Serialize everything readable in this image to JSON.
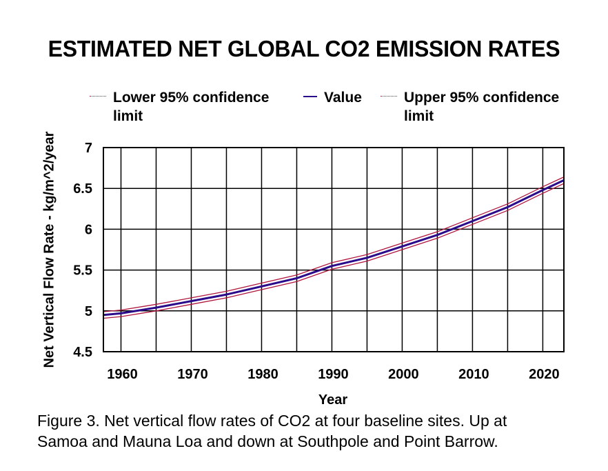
{
  "chart_data": {
    "type": "line",
    "title": "ESTIMATED NET GLOBAL CO2 EMISSION RATES",
    "xlabel": "Year",
    "ylabel": "Net Vertical Flow Rate - kg/m^2/year",
    "xlim": [
      1957.5,
      2023
    ],
    "ylim": [
      4.5,
      7
    ],
    "x_ticks": [
      1960,
      1970,
      1980,
      1990,
      2000,
      2010,
      2020
    ],
    "x_tick_labels": [
      "1960",
      "1970",
      "1980",
      "1990",
      "2000",
      "2010",
      "2020"
    ],
    "x_grid_step": 5,
    "y_ticks": [
      4.5,
      5,
      5.5,
      6,
      6.5,
      7
    ],
    "y_tick_labels": [
      "4.5",
      "5",
      "5.5",
      "6",
      "6.5",
      "7"
    ],
    "grid": true,
    "legend_position": "top",
    "x": [
      1957.5,
      1960,
      1965,
      1970,
      1975,
      1980,
      1985,
      1990,
      1995,
      2000,
      2005,
      2010,
      2015,
      2020,
      2023
    ],
    "series": [
      {
        "name": "Lower 95% confidence limit",
        "style": "dotted",
        "color": "#b0143c",
        "values": [
          4.91,
          4.93,
          5.0,
          5.08,
          5.16,
          5.26,
          5.36,
          5.51,
          5.61,
          5.75,
          5.89,
          6.06,
          6.23,
          6.44,
          6.56
        ]
      },
      {
        "name": "Value",
        "style": "solid",
        "color": "#2a0a8a",
        "values": [
          4.95,
          4.97,
          5.04,
          5.12,
          5.2,
          5.3,
          5.4,
          5.55,
          5.65,
          5.79,
          5.93,
          6.1,
          6.27,
          6.48,
          6.6
        ]
      },
      {
        "name": "Upper 95% confidence limit",
        "style": "dotted",
        "color": "#b0143c",
        "values": [
          4.99,
          5.01,
          5.08,
          5.16,
          5.24,
          5.34,
          5.44,
          5.59,
          5.69,
          5.83,
          5.97,
          6.14,
          6.31,
          6.52,
          6.64
        ]
      }
    ],
    "caption": "Figure 3. Net vertical flow rates of CO2 at four baseline sites. Up at Samoa and Mauna Loa and down at Southpole and Point Barrow."
  },
  "legend": {
    "lower_label_line1": "Lower 95% confidence",
    "lower_label_line2": "limit",
    "value_label": "Value",
    "upper_label_line1": "Upper 95% confidence",
    "upper_label_line2": "limit"
  },
  "caption": {
    "line1": "Figure 3. Net vertical flow rates of CO2 at four baseline sites. Up at",
    "line2": "Samoa and Mauna Loa and down at Southpole and Point Barrow."
  }
}
